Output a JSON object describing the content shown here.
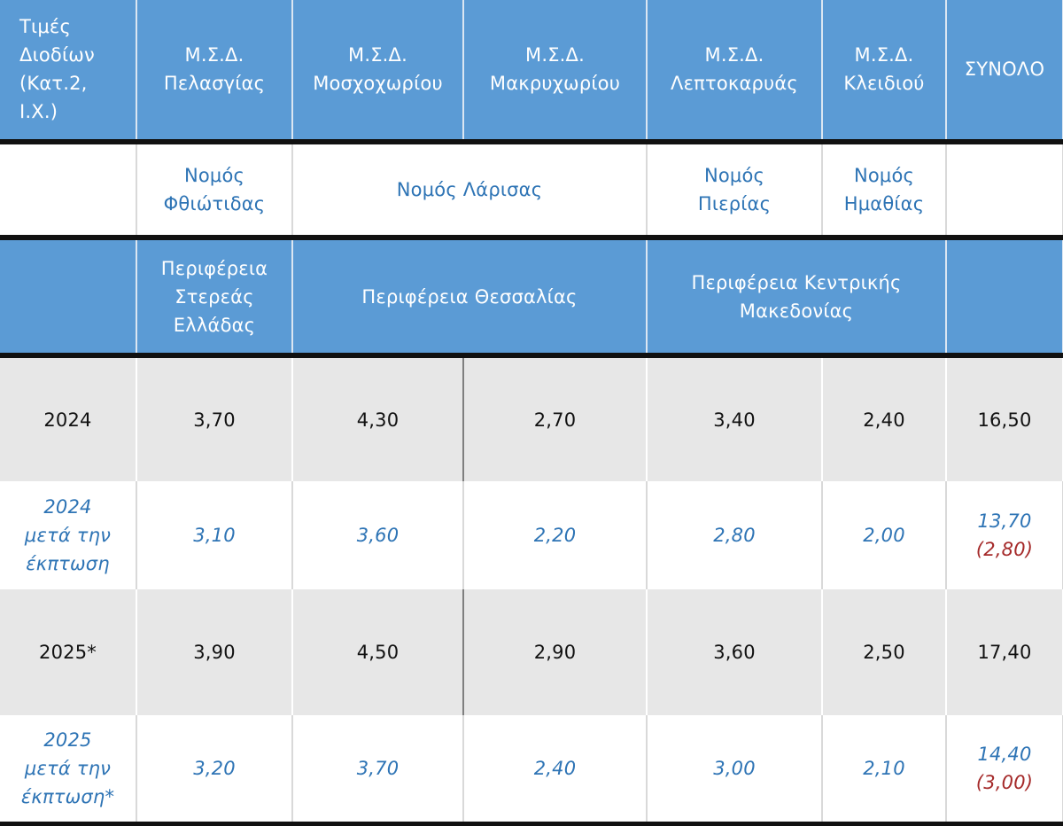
{
  "header": {
    "corner": [
      "Τιμές",
      "Διοδίων",
      "(Κατ.2,",
      "Ι.Χ.)"
    ],
    "stations": [
      {
        "prefix": "Μ.Σ.Δ.",
        "name": "Πελασγίας"
      },
      {
        "prefix": "Μ.Σ.Δ.",
        "name": "Μοσχοχωρίου"
      },
      {
        "prefix": "Μ.Σ.Δ.",
        "name": "Μακρυχωρίου"
      },
      {
        "prefix": "Μ.Σ.Δ.",
        "name": "Λεπτοκαρυάς"
      },
      {
        "prefix": "Μ.Σ.Δ.",
        "name": "Κλειδιού"
      }
    ],
    "total": "ΣΥΝΟΛΟ"
  },
  "prefectures": {
    "fthiotida": [
      "Νομός",
      "Φθιώτιδας"
    ],
    "larisa": "Νομός Λάρισας",
    "pieria": [
      "Νομός",
      "Πιερίας"
    ],
    "imathia": [
      "Νομός",
      "Ημαθίας"
    ]
  },
  "regions": {
    "sterea": [
      "Περιφέρεια",
      "Στερεάς",
      "Ελλάδας"
    ],
    "thessalia": "Περιφέρεια Θεσσαλίας",
    "kentriki": [
      "Περιφέρεια Κεντρικής",
      "Μακεδονίας"
    ]
  },
  "rows": [
    {
      "label": [
        "2024"
      ],
      "values": [
        "3,70",
        "4,30",
        "2,70",
        "3,40",
        "2,40"
      ],
      "total": "16,50"
    },
    {
      "label": [
        "2024",
        "μετά την",
        "έκπτωση"
      ],
      "values": [
        "3,10",
        "3,60",
        "2,20",
        "2,80",
        "2,00"
      ],
      "total": "13,70",
      "saving": "(2,80)"
    },
    {
      "label": [
        "2025*"
      ],
      "values": [
        "3,90",
        "4,50",
        "2,90",
        "3,60",
        "2,50"
      ],
      "total": "17,40"
    },
    {
      "label": [
        "2025",
        "μετά την",
        "έκπτωση*"
      ],
      "values": [
        "3,20",
        "3,70",
        "2,40",
        "3,00",
        "2,10"
      ],
      "total": "14,40",
      "saving": "(3,00)"
    }
  ],
  "colors": {
    "header_blue": "#5b9bd5",
    "text_blue": "#2e74b5",
    "row_grey": "#e7e7e7",
    "saving_red": "#a52a2a"
  }
}
